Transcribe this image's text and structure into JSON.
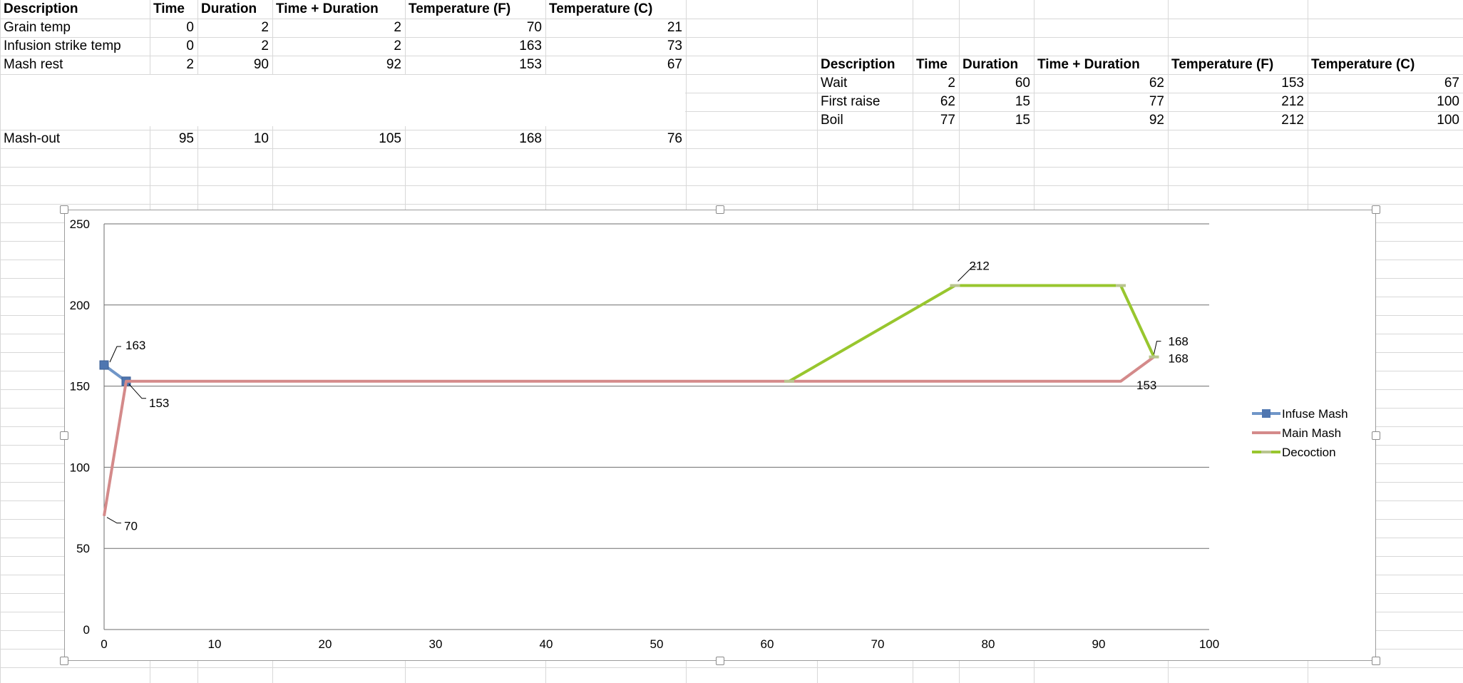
{
  "sheet": {
    "table_main": {
      "headers": [
        "Description",
        "Time",
        "Duration",
        "Time + Duration",
        "Temperature (F)",
        "Temperature (C)"
      ],
      "rows": [
        [
          "Grain temp",
          "0",
          "2",
          "2",
          "70",
          "21"
        ],
        [
          "Infusion strike temp",
          "0",
          "2",
          "2",
          "163",
          "73"
        ],
        [
          "Mash rest",
          "2",
          "90",
          "92",
          "153",
          "67"
        ],
        [
          "Mash-out",
          "95",
          "10",
          "105",
          "168",
          "76"
        ]
      ]
    },
    "table_decoction": {
      "headers": [
        "Description",
        "Time",
        "Duration",
        "Time + Duration",
        "Temperature (F)",
        "Temperature (C)"
      ],
      "rows": [
        [
          "Wait",
          "2",
          "60",
          "62",
          "153",
          "67"
        ],
        [
          "First raise",
          "62",
          "15",
          "77",
          "212",
          "100"
        ],
        [
          "Boil",
          "77",
          "15",
          "92",
          "212",
          "100"
        ]
      ]
    }
  },
  "chart_data": {
    "type": "line",
    "title": "",
    "xlabel": "",
    "ylabel": "",
    "xlim": [
      0,
      100
    ],
    "ylim": [
      0,
      250
    ],
    "x_ticks": [
      0,
      10,
      20,
      30,
      40,
      50,
      60,
      70,
      80,
      90,
      100
    ],
    "y_ticks": [
      0,
      50,
      100,
      150,
      200,
      250
    ],
    "grid": "horizontal",
    "legend_position": "right",
    "series": [
      {
        "name": "Infuse Mash",
        "color": "#7096c8",
        "marker": "square",
        "points": [
          [
            0,
            163
          ],
          [
            2,
            153
          ]
        ]
      },
      {
        "name": "Main Mash",
        "color": "#d48a8a",
        "marker": "none",
        "points": [
          [
            0,
            70
          ],
          [
            2,
            153
          ],
          [
            92,
            153
          ],
          [
            95,
            168
          ]
        ]
      },
      {
        "name": "Decoction",
        "color": "#98c62e",
        "marker": "dash",
        "points": [
          [
            62,
            153
          ],
          [
            77,
            212
          ],
          [
            92,
            212
          ],
          [
            95,
            168
          ]
        ]
      }
    ],
    "annotations": [
      {
        "text": "163",
        "x": 0,
        "y": 163
      },
      {
        "text": "153",
        "x": 2,
        "y": 153
      },
      {
        "text": "70",
        "x": 0,
        "y": 70
      },
      {
        "text": "212",
        "x": 77,
        "y": 212
      },
      {
        "text": "168",
        "x": 95,
        "y": 168
      },
      {
        "text": "168",
        "x": 95,
        "y": 168
      },
      {
        "text": "153",
        "x": 92,
        "y": 153
      }
    ]
  }
}
